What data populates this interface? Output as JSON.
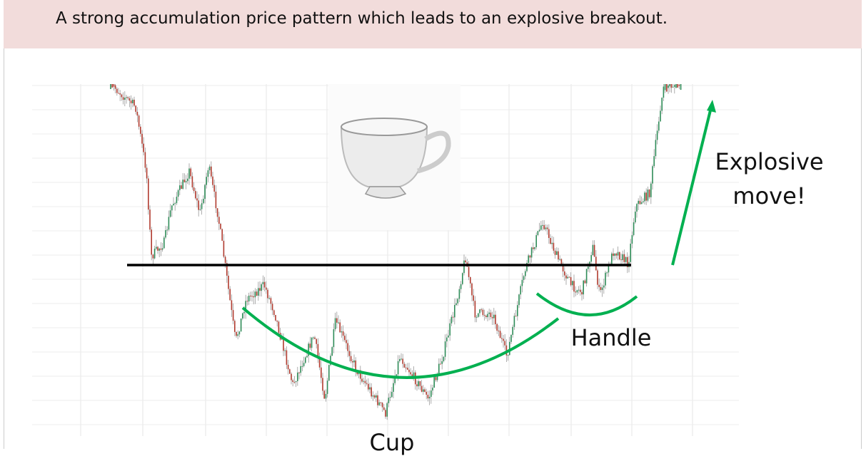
{
  "header": {
    "title": "A strong accumulation price pattern which leads to an explosive breakout."
  },
  "labels": {
    "explosive": "Explosive move!",
    "handle": "Handle",
    "cup": "Cup"
  }
}
